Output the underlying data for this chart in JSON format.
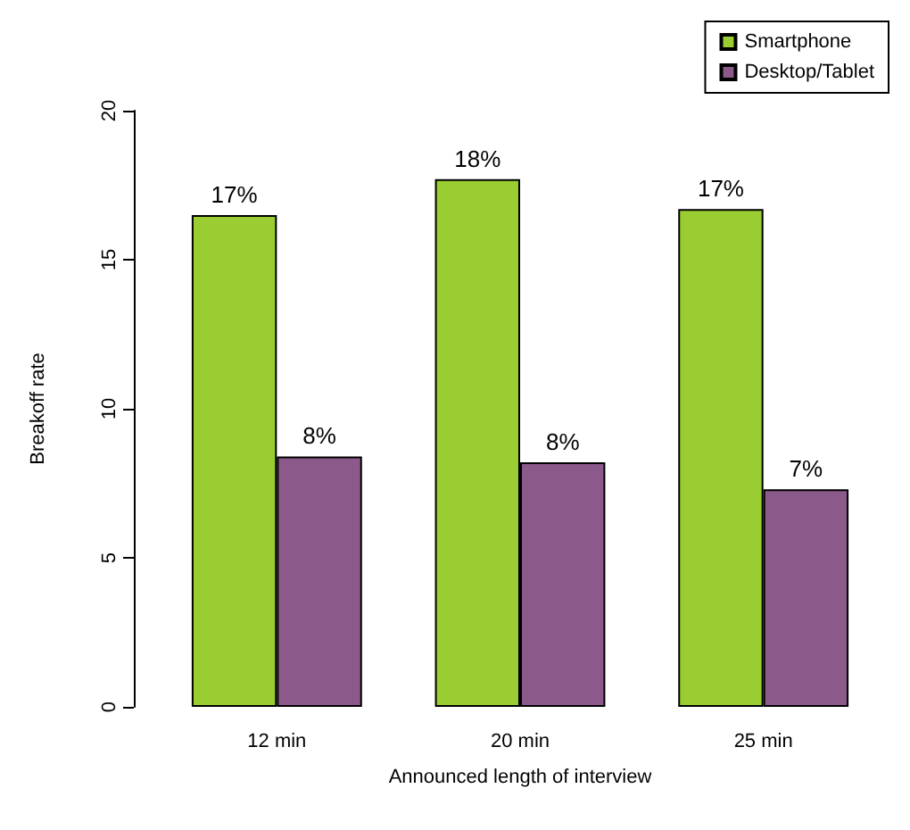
{
  "chart_data": {
    "type": "bar",
    "xlabel": "Announced length of interview",
    "ylabel": "Breakoff rate",
    "categories": [
      "12 min",
      "20 min",
      "25 min"
    ],
    "series": [
      {
        "name": "Smartphone",
        "color": "#9acd32",
        "values": [
          16.5,
          17.7,
          16.7
        ],
        "value_labels": [
          "17%",
          "18%",
          "17%"
        ]
      },
      {
        "name": "Desktop/Tablet",
        "color": "#8b5a8b",
        "values": [
          8.4,
          8.2,
          7.3
        ],
        "value_labels": [
          "8%",
          "8%",
          "7%"
        ]
      }
    ],
    "ylim": [
      0,
      20
    ],
    "yticks": [
      0,
      5,
      10,
      15,
      20
    ],
    "grid": false,
    "legend": "top right"
  }
}
